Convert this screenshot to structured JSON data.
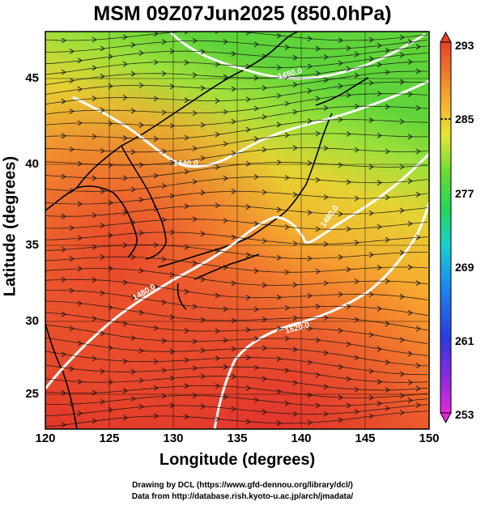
{
  "title": "MSM 09Z07Jun2025 (850.0hPa)",
  "x_axis": {
    "label": "Longitude (degrees)",
    "ticks": [
      "120",
      "125",
      "130",
      "135",
      "140",
      "145",
      "150"
    ]
  },
  "y_axis": {
    "label": "Latitude  (degrees)",
    "ticks": [
      "25",
      "30",
      "35",
      "40",
      "45"
    ]
  },
  "colorbar": {
    "ticks": [
      "293",
      "285",
      "277",
      "269",
      "261",
      "253"
    ]
  },
  "contour_labels": [
    "1480.0",
    "1440.0",
    "1480.0",
    "1480.0",
    "1520.0"
  ],
  "credits": {
    "line1": "Drawing by DCL (https://www.gfd-dennou.org/library/dcl/)",
    "line2": "Data from http://database.rish.kyoto-u.ac.jp/arch/jmadata/"
  },
  "colors": {
    "warm": "#e8402a",
    "mid": "#f58a2e",
    "cool_green": "#7fd637",
    "contour": "#ffffff",
    "coast": "#000000"
  }
}
